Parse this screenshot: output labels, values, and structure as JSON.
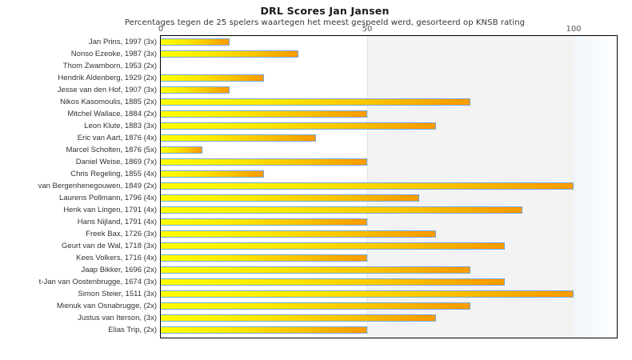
{
  "chart_data": {
    "type": "bar",
    "orientation": "horizontal",
    "title": "DRL Scores Jan Jansen",
    "subtitle": "Percentages tegen de 25 spelers waartegen het meest gespeeld werd, gesorteerd op KNSB rating",
    "xlabel": "",
    "ylabel": "",
    "xlim": [
      0,
      110.5
    ],
    "xticks": [
      0,
      50,
      100
    ],
    "xtick_labels": [
      "0",
      "50",
      "100"
    ],
    "grid": false,
    "shaded_band": {
      "from": 50,
      "to": 100,
      "color": "#f3f3f3"
    },
    "overflow_band": {
      "from": 100,
      "to": 110.5,
      "color": "#f3f8fc"
    },
    "bar_style": {
      "gradient_start": "#ffff00",
      "gradient_end": "#ff9e00",
      "border_color": "#6fa8dc"
    },
    "categories": [
      "Jan Prins, 1997 (3x)",
      "Nonso Ezeoke, 1987 (3x)",
      "Thom Zwamborn, 1953 (2x)",
      "Hendrik Aldenberg, 1929 (2x)",
      "Jesse van den Hof, 1907 (3x)",
      "Nikos Kasomoulis, 1885 (2x)",
      "Mitchel Wallace, 1884 (2x)",
      "Leon Klute, 1883 (3x)",
      "Eric van Aart, 1876 (4x)",
      "Marcel Scholten, 1876 (5x)",
      "Daniel Weise, 1869 (7x)",
      "Chris Regeling, 1855 (4x)",
      "van Bergenhenegouwen, 1849 (2x)",
      "Laurens Pollmann, 1796 (4x)",
      "Henk van Lingen, 1791 (4x)",
      "Hans Nijland, 1791 (4x)",
      "Freek Bax, 1726 (3x)",
      "Geurt van de Wal, 1718 (3x)",
      "Kees Volkers, 1716 (4x)",
      "Jaap Bikker, 1696 (2x)",
      "t-Jan van Oostenbrugge, 1674 (3x)",
      "Simon Steier, 1511 (3x)",
      "Mienuk van Osnabrugge,  (2x)",
      "Justus van Iterson,  (3x)",
      "Elias Trip,  (2x)"
    ],
    "values": [
      16.7,
      33.3,
      0,
      25,
      16.7,
      75,
      50,
      66.7,
      37.5,
      10,
      50,
      25,
      100,
      62.5,
      87.5,
      50,
      66.7,
      83.3,
      50,
      75,
      83.3,
      100,
      75,
      66.7,
      50
    ]
  }
}
